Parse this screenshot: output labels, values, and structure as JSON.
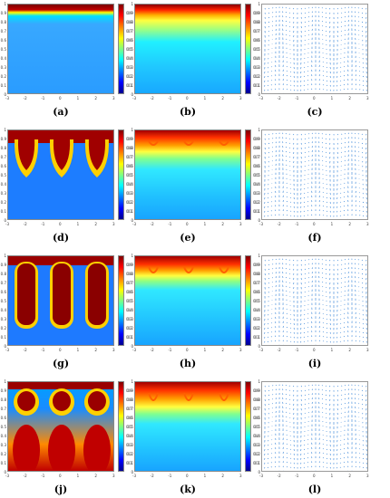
{
  "panels": [
    {
      "label": "(a)",
      "kind": "concentration"
    },
    {
      "label": "(b)",
      "kind": "temperature"
    },
    {
      "label": "(c)",
      "kind": "velocity"
    },
    {
      "label": "(d)",
      "kind": "concentration"
    },
    {
      "label": "(e)",
      "kind": "temperature"
    },
    {
      "label": "(f)",
      "kind": "velocity"
    },
    {
      "label": "(g)",
      "kind": "concentration"
    },
    {
      "label": "(h)",
      "kind": "temperature"
    },
    {
      "label": "(i)",
      "kind": "velocity"
    },
    {
      "label": "(j)",
      "kind": "concentration"
    },
    {
      "label": "(k)",
      "kind": "temperature"
    },
    {
      "label": "(l)",
      "kind": "velocity"
    }
  ],
  "colorbar_ticks": [
    "0.9",
    "0.8",
    "0.7",
    "0.6",
    "0.5",
    "0.4",
    "0.3",
    "0.2",
    "0.1"
  ],
  "y_ticks": [
    "1",
    "0.9",
    "0.8",
    "0.7",
    "0.6",
    "0.5",
    "0.4",
    "0.3",
    "0.2",
    "0.1",
    "0"
  ],
  "x_ticks": [
    "-3",
    "-2",
    "-1",
    "0",
    "1",
    "2",
    "3"
  ],
  "colormap": [
    "#00008f",
    "#0000ff",
    "#00ffff",
    "#ffff00",
    "#ff0000",
    "#800000"
  ]
}
